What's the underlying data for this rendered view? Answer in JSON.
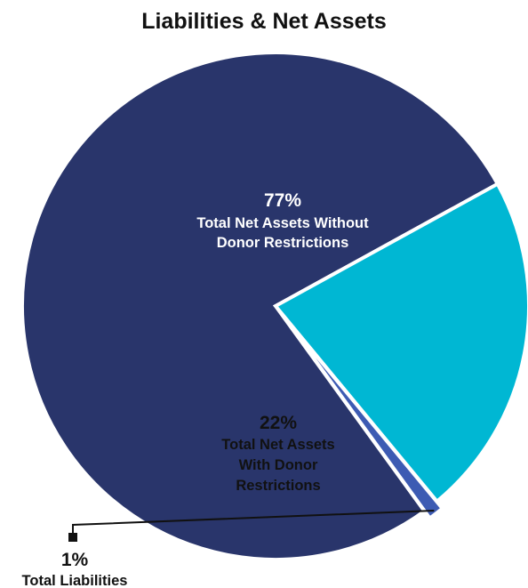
{
  "chart_data": {
    "type": "pie",
    "title": "Liabilities & Net Assets",
    "slices": [
      {
        "label_lines": [
          "Total Net Assets Without",
          "Donor Restrictions"
        ],
        "value": 77,
        "display_value": "77%",
        "color": "#29356b"
      },
      {
        "label_lines": [
          "Total Net Assets",
          "With Donor",
          "Restrictions"
        ],
        "value": 22,
        "display_value": "22%",
        "color": "#00b7d3"
      },
      {
        "label_lines": [
          "Total Liabilities"
        ],
        "value": 1,
        "display_value": "1%",
        "color": "#3d5bb3"
      }
    ]
  }
}
